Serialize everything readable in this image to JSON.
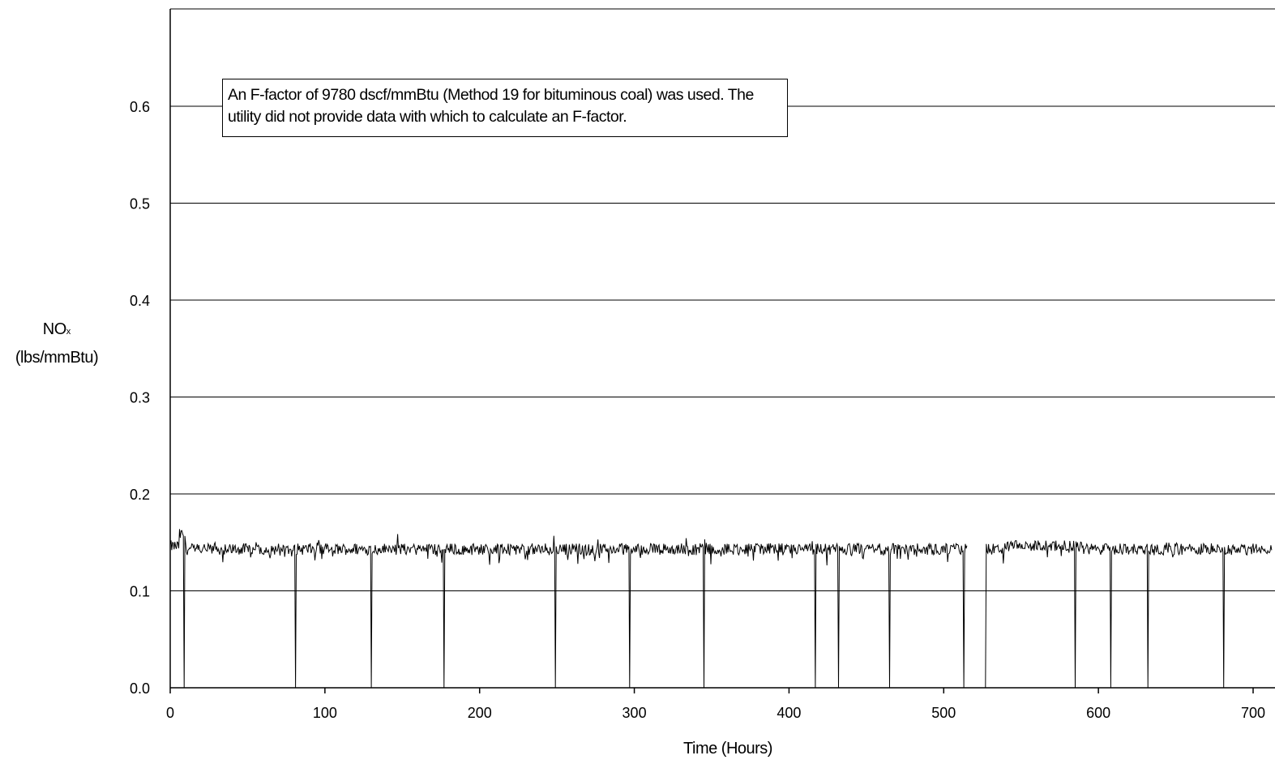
{
  "chart_data": {
    "type": "line",
    "annotation": "An F-factor of 9780 dscf/mmBtu (Method 19 for bituminous coal) was used.  The utility did not provide data with which to calculate an F-factor.",
    "ylabel_main": "NO",
    "ylabel_sub": "x",
    "ylabel_units": "(lbs/mmBtu)",
    "xlabel": "Time (Hours)",
    "xlim": [
      0,
      712
    ],
    "ylim": [
      0,
      0.7
    ],
    "x_ticks": [
      "0",
      "100",
      "200",
      "300",
      "400",
      "500",
      "600",
      "700"
    ],
    "x_tick_values": [
      0,
      100,
      200,
      300,
      400,
      500,
      600,
      700
    ],
    "y_ticks": [
      "0.0",
      "0.1",
      "0.2",
      "0.3",
      "0.4",
      "0.5",
      "0.6"
    ],
    "y_tick_values": [
      0,
      0.1,
      0.2,
      0.3,
      0.4,
      0.5,
      0.6
    ],
    "grid": true,
    "series": [
      {
        "color": "#000000",
        "baseline": 0.143,
        "variation": 0.006,
        "segments": [
          {
            "x_start": 0,
            "x_end": 6,
            "level": 0.146
          },
          {
            "x_start": 6,
            "x_end": 10,
            "level": 0.158
          },
          {
            "x_start": 540,
            "x_end": 590,
            "level": 0.146
          }
        ],
        "dropouts_to_zero": [
          9,
          81,
          130,
          177,
          249,
          297,
          345,
          417,
          432,
          465,
          513,
          521,
          527,
          585,
          608,
          632,
          681
        ],
        "gaps": [
          [
            515,
            527
          ]
        ]
      }
    ]
  }
}
